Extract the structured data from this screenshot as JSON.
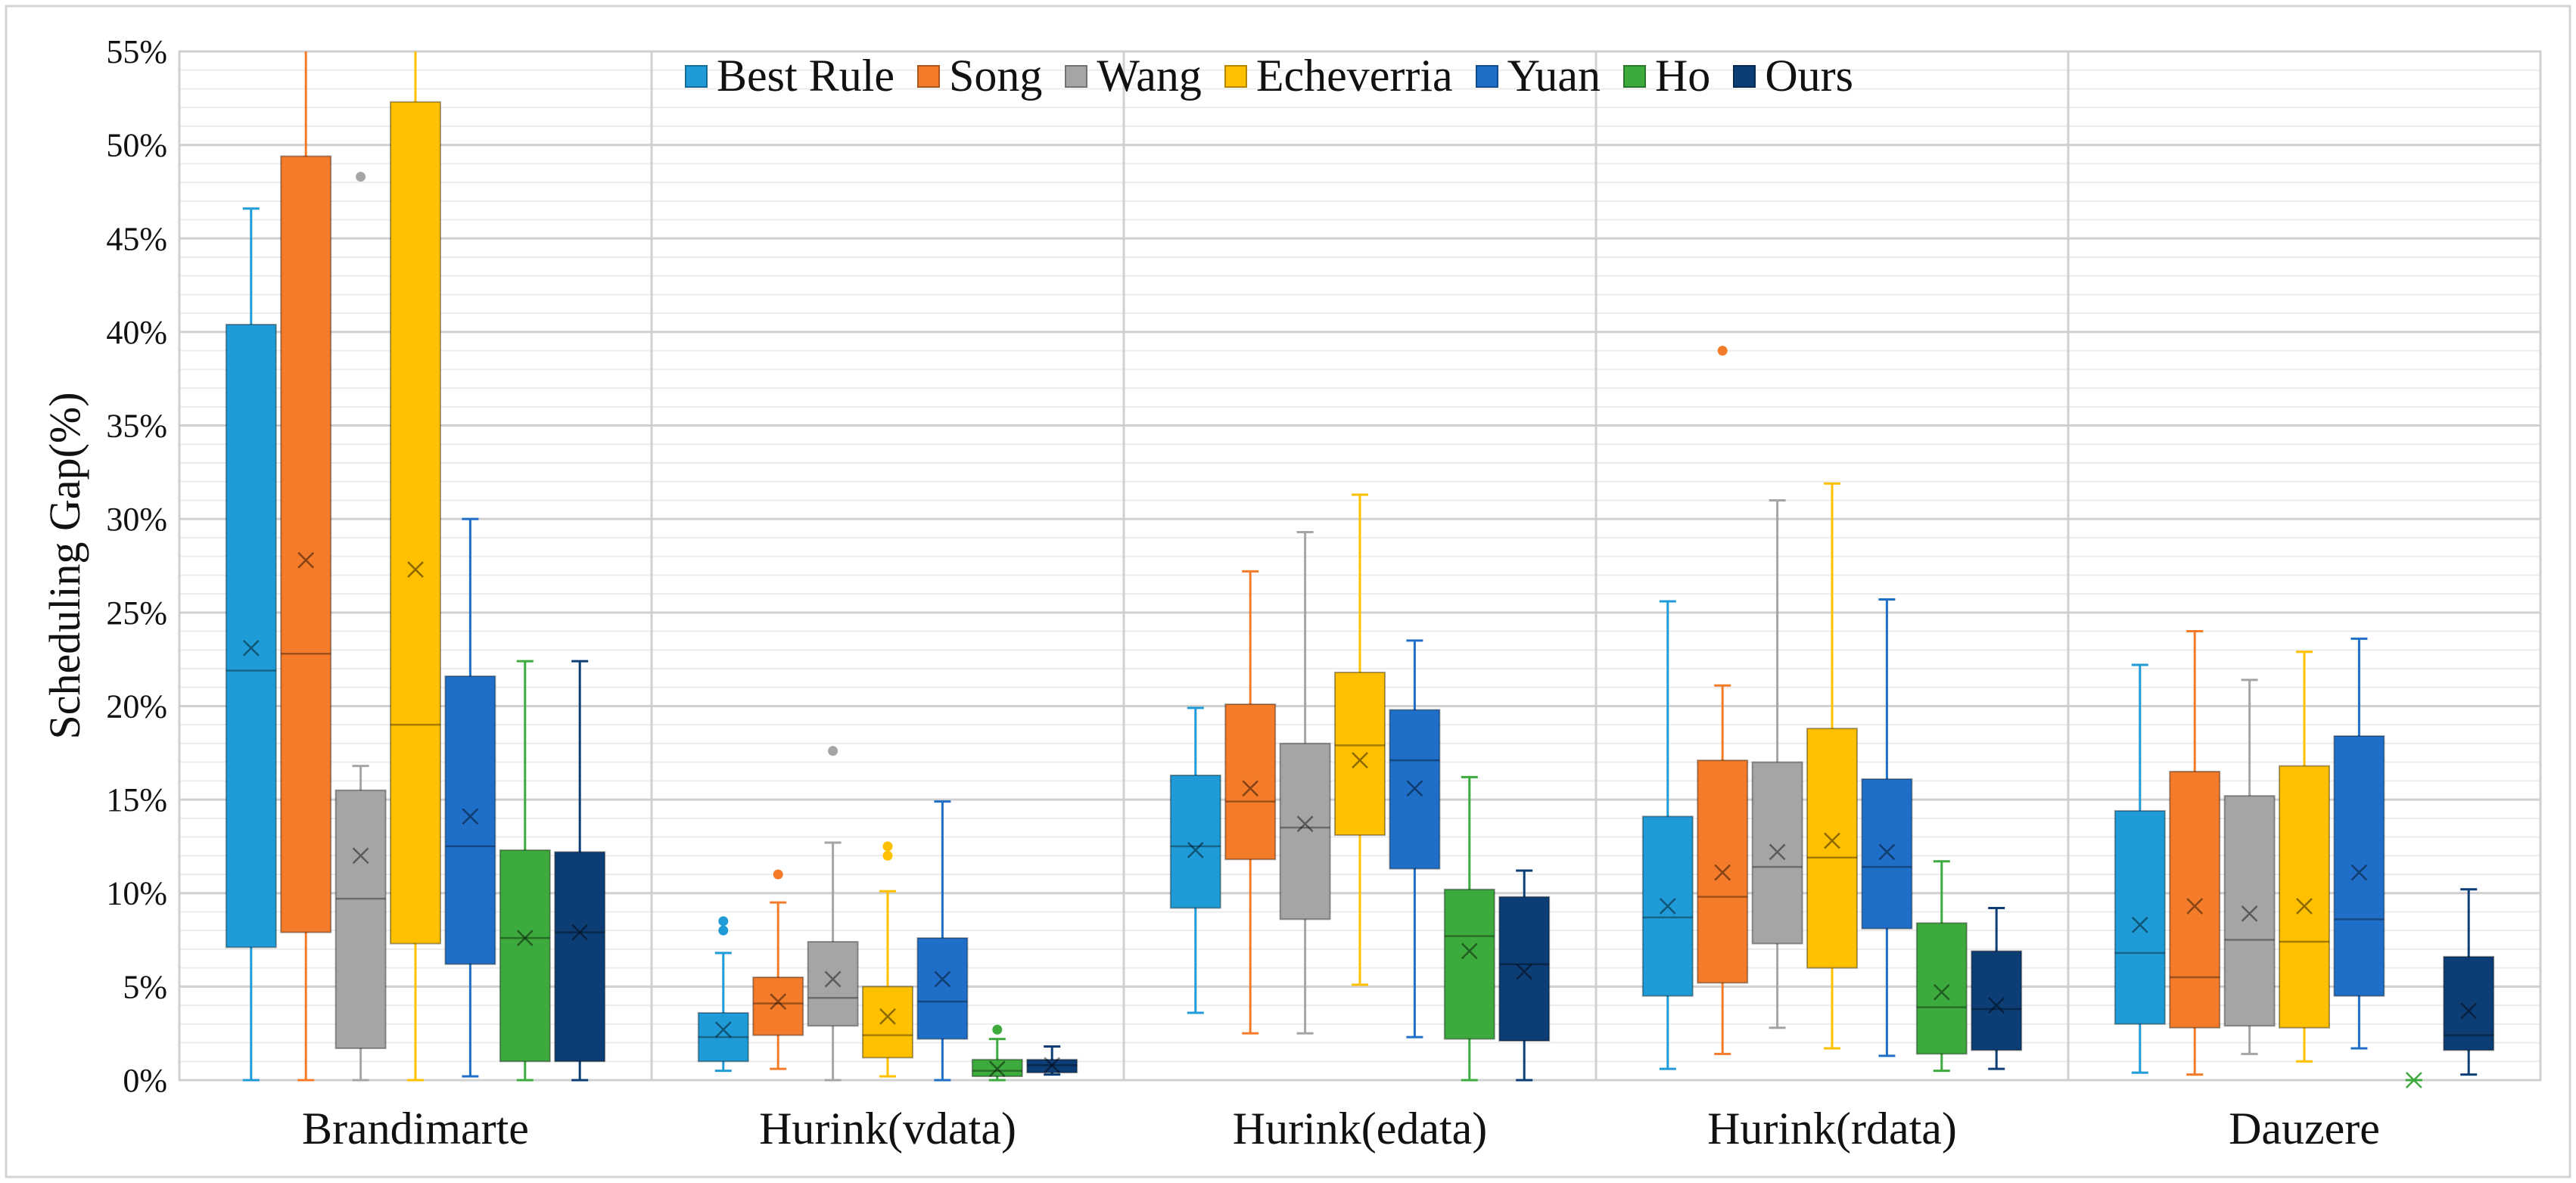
{
  "chart_data": {
    "type": "box",
    "ylabel": "Scheduling Gap(%)",
    "xlabel": "",
    "ylim": [
      0,
      55
    ],
    "yticks": [
      0,
      5,
      10,
      15,
      20,
      25,
      30,
      35,
      40,
      45,
      50,
      55
    ],
    "ytick_labels": [
      "0%",
      "5%",
      "10%",
      "15%",
      "20%",
      "25%",
      "30%",
      "35%",
      "40%",
      "45%",
      "50%",
      "55%"
    ],
    "grid": true,
    "legend_position": "top-center",
    "categories": [
      "Brandimarte",
      "Hurink(vdata)",
      "Hurink(edata)",
      "Hurink(rdata)",
      "Dauzere"
    ],
    "series": [
      {
        "name": "Best Rule",
        "color": "#1F9BD7",
        "boxes": [
          {
            "whisker_low": 0,
            "q1": 7.1,
            "median": 21.9,
            "q3": 40.4,
            "whisker_high": 46.6,
            "mean": 23.1,
            "outliers": []
          },
          {
            "whisker_low": 0.5,
            "q1": 1.0,
            "median": 2.3,
            "q3": 3.6,
            "whisker_high": 6.8,
            "mean": 2.7,
            "outliers": [
              8.0,
              8.5
            ]
          },
          {
            "whisker_low": 3.6,
            "q1": 9.2,
            "median": 12.5,
            "q3": 16.3,
            "whisker_high": 19.9,
            "mean": 12.3,
            "outliers": []
          },
          {
            "whisker_low": 0.6,
            "q1": 4.5,
            "median": 8.7,
            "q3": 14.1,
            "whisker_high": 25.6,
            "mean": 9.3,
            "outliers": []
          },
          {
            "whisker_low": 0.4,
            "q1": 3.0,
            "median": 6.8,
            "q3": 14.4,
            "whisker_high": 22.2,
            "mean": 8.3,
            "outliers": []
          }
        ]
      },
      {
        "name": "Song",
        "color": "#F47B29",
        "boxes": [
          {
            "whisker_low": 0,
            "q1": 7.9,
            "median": 22.8,
            "q3": 49.4,
            "whisker_high": 55,
            "mean": 27.8,
            "outliers": []
          },
          {
            "whisker_low": 0.6,
            "q1": 2.4,
            "median": 4.1,
            "q3": 5.5,
            "whisker_high": 9.5,
            "mean": 4.2,
            "outliers": [
              11.0
            ]
          },
          {
            "whisker_low": 2.5,
            "q1": 11.8,
            "median": 14.9,
            "q3": 20.1,
            "whisker_high": 27.2,
            "mean": 15.6,
            "outliers": []
          },
          {
            "whisker_low": 1.4,
            "q1": 5.2,
            "median": 9.8,
            "q3": 17.1,
            "whisker_high": 21.1,
            "mean": 11.1,
            "outliers": [
              39.0
            ]
          },
          {
            "whisker_low": 0.3,
            "q1": 2.8,
            "median": 5.5,
            "q3": 16.5,
            "whisker_high": 24.0,
            "mean": 9.3,
            "outliers": []
          }
        ]
      },
      {
        "name": "Wang",
        "color": "#A5A5A5",
        "boxes": [
          {
            "whisker_low": 0,
            "q1": 1.7,
            "median": 9.7,
            "q3": 15.5,
            "whisker_high": 16.8,
            "mean": 12.0,
            "outliers": [
              48.3
            ]
          },
          {
            "whisker_low": 0,
            "q1": 2.9,
            "median": 4.4,
            "q3": 7.4,
            "whisker_high": 12.7,
            "mean": 5.4,
            "outliers": [
              17.6
            ]
          },
          {
            "whisker_low": 2.5,
            "q1": 8.6,
            "median": 13.5,
            "q3": 18.0,
            "whisker_high": 29.3,
            "mean": 13.7,
            "outliers": []
          },
          {
            "whisker_low": 2.8,
            "q1": 7.3,
            "median": 11.4,
            "q3": 17.0,
            "whisker_high": 31.0,
            "mean": 12.2,
            "outliers": []
          },
          {
            "whisker_low": 1.4,
            "q1": 2.9,
            "median": 7.5,
            "q3": 15.2,
            "whisker_high": 21.4,
            "mean": 8.9,
            "outliers": []
          }
        ]
      },
      {
        "name": "Echeverria",
        "color": "#FFC000",
        "boxes": [
          {
            "whisker_low": 0,
            "q1": 7.3,
            "median": 19.0,
            "q3": 52.3,
            "whisker_high": 55,
            "mean": 27.3,
            "outliers": []
          },
          {
            "whisker_low": 0.2,
            "q1": 1.2,
            "median": 2.4,
            "q3": 5.0,
            "whisker_high": 10.1,
            "mean": 3.4,
            "outliers": [
              12.0,
              12.5
            ]
          },
          {
            "whisker_low": 5.1,
            "q1": 13.1,
            "median": 17.9,
            "q3": 21.8,
            "whisker_high": 31.3,
            "mean": 17.1,
            "outliers": []
          },
          {
            "whisker_low": 1.7,
            "q1": 6.0,
            "median": 11.9,
            "q3": 18.8,
            "whisker_high": 31.9,
            "mean": 12.8,
            "outliers": []
          },
          {
            "whisker_low": 1.0,
            "q1": 2.8,
            "median": 7.4,
            "q3": 16.8,
            "whisker_high": 22.9,
            "mean": 9.3,
            "outliers": []
          }
        ]
      },
      {
        "name": "Yuan",
        "color": "#1F6FC9",
        "boxes": [
          {
            "whisker_low": 0.2,
            "q1": 6.2,
            "median": 12.5,
            "q3": 21.6,
            "whisker_high": 30.0,
            "mean": 14.1,
            "outliers": []
          },
          {
            "whisker_low": 0,
            "q1": 2.2,
            "median": 4.2,
            "q3": 7.6,
            "whisker_high": 14.9,
            "mean": 5.4,
            "outliers": []
          },
          {
            "whisker_low": 2.3,
            "q1": 11.3,
            "median": 17.1,
            "q3": 19.8,
            "whisker_high": 23.5,
            "mean": 15.6,
            "outliers": []
          },
          {
            "whisker_low": 1.3,
            "q1": 8.1,
            "median": 11.4,
            "q3": 16.1,
            "whisker_high": 25.7,
            "mean": 12.2,
            "outliers": []
          },
          {
            "whisker_low": 1.7,
            "q1": 4.5,
            "median": 8.6,
            "q3": 18.4,
            "whisker_high": 23.6,
            "mean": 11.1,
            "outliers": []
          }
        ]
      },
      {
        "name": "Ho",
        "color": "#3DAA3D",
        "boxes": [
          {
            "whisker_low": 0,
            "q1": 1.0,
            "median": 7.6,
            "q3": 12.3,
            "whisker_high": 22.4,
            "mean": 7.6,
            "outliers": []
          },
          {
            "whisker_low": 0,
            "q1": 0.2,
            "median": 0.5,
            "q3": 1.1,
            "whisker_high": 2.2,
            "mean": 0.6,
            "outliers": [
              2.7
            ]
          },
          {
            "whisker_low": 0,
            "q1": 2.2,
            "median": 7.7,
            "q3": 10.2,
            "whisker_high": 16.2,
            "mean": 6.9,
            "outliers": []
          },
          {
            "whisker_low": 0.5,
            "q1": 1.4,
            "median": 3.9,
            "q3": 8.4,
            "whisker_high": 11.7,
            "mean": 4.7,
            "outliers": []
          },
          {
            "whisker_low": 0,
            "q1": 0,
            "median": 0,
            "q3": 0,
            "whisker_high": 0,
            "mean": 0,
            "outliers": []
          }
        ]
      },
      {
        "name": "Ours",
        "color": "#0D3D75",
        "boxes": [
          {
            "whisker_low": 0,
            "q1": 1.0,
            "median": 7.9,
            "q3": 12.2,
            "whisker_high": 22.4,
            "mean": 7.9,
            "outliers": []
          },
          {
            "whisker_low": 0.3,
            "q1": 0.4,
            "median": 0.8,
            "q3": 1.1,
            "whisker_high": 1.8,
            "mean": 0.8,
            "outliers": []
          },
          {
            "whisker_low": 0,
            "q1": 2.1,
            "median": 6.2,
            "q3": 9.8,
            "whisker_high": 11.2,
            "mean": 5.8,
            "outliers": []
          },
          {
            "whisker_low": 0.6,
            "q1": 1.6,
            "median": 3.8,
            "q3": 6.9,
            "whisker_high": 9.2,
            "mean": 4.0,
            "outliers": []
          },
          {
            "whisker_low": 0.3,
            "q1": 1.6,
            "median": 2.4,
            "q3": 6.6,
            "whisker_high": 10.2,
            "mean": 3.7,
            "outliers": []
          }
        ]
      }
    ]
  }
}
